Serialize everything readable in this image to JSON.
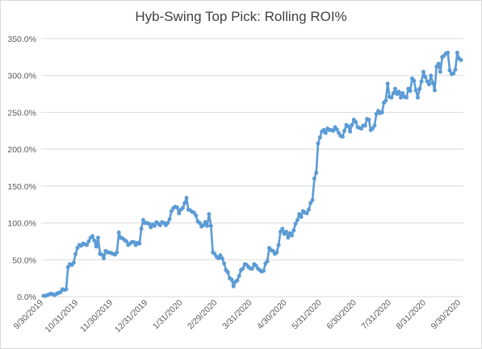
{
  "chart_data": {
    "type": "line",
    "title": "Hyb-Swing Top Pick: Rolling ROI%",
    "xlabel": "",
    "ylabel": "",
    "ylim": [
      0,
      350
    ],
    "y_ticks": [
      "0.0%",
      "50.0%",
      "100.0%",
      "150.0%",
      "200.0%",
      "250.0%",
      "300.0%",
      "350.0%"
    ],
    "x_ticks": [
      "9/30/2019",
      "10/31/2019",
      "11/30/2019",
      "12/31/2019",
      "1/31/2020",
      "2/29/2020",
      "3/31/2020",
      "4/30/2020",
      "5/31/2020",
      "6/30/2020",
      "7/31/2020",
      "8/31/2020",
      "9/30/2020"
    ],
    "grid": "horizontal",
    "marker": "circle",
    "colors": {
      "series": "#5b9bd5",
      "grid": "#d9d9d9"
    },
    "series": [
      {
        "values": [
          1,
          1,
          2,
          3,
          4,
          3,
          2,
          4,
          5,
          6,
          10,
          9,
          10,
          40,
          44,
          43,
          46,
          58,
          66,
          70,
          69,
          72,
          71,
          70,
          75,
          80,
          82,
          76,
          68,
          80,
          58,
          57,
          52,
          62,
          60,
          60,
          59,
          58,
          57,
          60,
          87,
          80,
          79,
          77,
          75,
          70,
          72,
          74,
          74,
          70,
          73,
          72,
          92,
          104,
          100,
          100,
          99,
          94,
          98,
          96,
          101,
          99,
          97,
          101,
          100,
          97,
          100,
          105,
          116,
          120,
          122,
          121,
          113,
          118,
          120,
          127,
          134,
          118,
          117,
          115,
          114,
          110,
          102,
          100,
          95,
          97,
          101,
          96,
          112,
          96,
          60,
          58,
          54,
          52,
          56,
          52,
          45,
          36,
          33,
          25,
          23,
          14,
          20,
          22,
          28,
          36,
          38,
          44,
          43,
          40,
          38,
          38,
          44,
          42,
          38,
          36,
          34,
          35,
          45,
          48,
          66,
          63,
          62,
          58,
          60,
          70,
          88,
          92,
          85,
          88,
          80,
          86,
          83,
          90,
          99,
          104,
          112,
          108,
          116,
          114,
          113,
          118,
          127,
          131,
          160,
          168,
          208,
          216,
          224,
          226,
          222,
          228,
          226,
          226,
          225,
          230,
          227,
          222,
          218,
          217,
          225,
          233,
          231,
          224,
          233,
          240,
          237,
          230,
          229,
          228,
          232,
          232,
          241,
          240,
          226,
          228,
          232,
          248,
          252,
          249,
          250,
          263,
          266,
          289,
          271,
          270,
          276,
          282,
          275,
          278,
          270,
          276,
          271,
          270,
          282,
          279,
          296,
          293,
          280,
          270,
          282,
          292,
          305,
          298,
          292,
          288,
          300,
          290,
          280,
          312,
          316,
          305,
          325,
          327,
          330,
          331,
          307,
          302,
          303,
          308,
          331,
          323,
          321
        ]
      }
    ]
  }
}
